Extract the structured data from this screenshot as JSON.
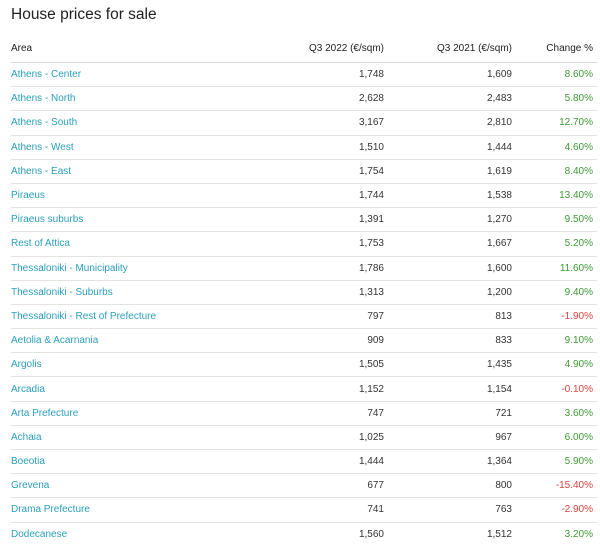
{
  "title": "House prices for sale",
  "columns": {
    "area": "Area",
    "q3_2022": "Q3 2022 (€/sqm)",
    "q3_2021": "Q3 2021 (€/sqm)",
    "change": "Change %"
  },
  "colors": {
    "link": "#2a9fbc",
    "positive": "#3d9b35",
    "negative": "#e0423b"
  },
  "rows": [
    {
      "area": "Athens - Center",
      "q3_2022": "1,748",
      "q3_2021": "1,609",
      "change": "8.60%",
      "trend": "pos"
    },
    {
      "area": "Athens - North",
      "q3_2022": "2,628",
      "q3_2021": "2,483",
      "change": "5.80%",
      "trend": "pos"
    },
    {
      "area": "Athens - South",
      "q3_2022": "3,167",
      "q3_2021": "2,810",
      "change": "12.70%",
      "trend": "pos"
    },
    {
      "area": "Athens - West",
      "q3_2022": "1,510",
      "q3_2021": "1,444",
      "change": "4.60%",
      "trend": "pos"
    },
    {
      "area": "Athens - East",
      "q3_2022": "1,754",
      "q3_2021": "1,619",
      "change": "8.40%",
      "trend": "pos"
    },
    {
      "area": "Piraeus",
      "q3_2022": "1,744",
      "q3_2021": "1,538",
      "change": "13.40%",
      "trend": "pos"
    },
    {
      "area": "Piraeus suburbs",
      "q3_2022": "1,391",
      "q3_2021": "1,270",
      "change": "9.50%",
      "trend": "pos"
    },
    {
      "area": "Rest of Attica",
      "q3_2022": "1,753",
      "q3_2021": "1,667",
      "change": "5.20%",
      "trend": "pos"
    },
    {
      "area": "Thessaloniki - Municipality",
      "q3_2022": "1,786",
      "q3_2021": "1,600",
      "change": "11.60%",
      "trend": "pos"
    },
    {
      "area": "Thessaloniki - Suburbs",
      "q3_2022": "1,313",
      "q3_2021": "1,200",
      "change": "9.40%",
      "trend": "pos"
    },
    {
      "area": "Thessaloniki - Rest of Prefecture",
      "q3_2022": "797",
      "q3_2021": "813",
      "change": "-1.90%",
      "trend": "neg"
    },
    {
      "area": "Aetolia & Acarnania",
      "q3_2022": "909",
      "q3_2021": "833",
      "change": "9.10%",
      "trend": "pos"
    },
    {
      "area": "Argolis",
      "q3_2022": "1,505",
      "q3_2021": "1,435",
      "change": "4.90%",
      "trend": "pos"
    },
    {
      "area": "Arcadia",
      "q3_2022": "1,152",
      "q3_2021": "1,154",
      "change": "-0.10%",
      "trend": "neg"
    },
    {
      "area": "Arta Prefecture",
      "q3_2022": "747",
      "q3_2021": "721",
      "change": "3.60%",
      "trend": "pos"
    },
    {
      "area": "Achaia",
      "q3_2022": "1,025",
      "q3_2021": "967",
      "change": "6.00%",
      "trend": "pos"
    },
    {
      "area": "Boeotia",
      "q3_2022": "1,444",
      "q3_2021": "1,364",
      "change": "5.90%",
      "trend": "pos"
    },
    {
      "area": "Grevena",
      "q3_2022": "677",
      "q3_2021": "800",
      "change": "-15.40%",
      "trend": "neg"
    },
    {
      "area": "Drama Prefecture",
      "q3_2022": "741",
      "q3_2021": "763",
      "change": "-2.90%",
      "trend": "neg"
    },
    {
      "area": "Dodecanese",
      "q3_2022": "1,560",
      "q3_2021": "1,512",
      "change": "3.20%",
      "trend": "pos"
    }
  ]
}
